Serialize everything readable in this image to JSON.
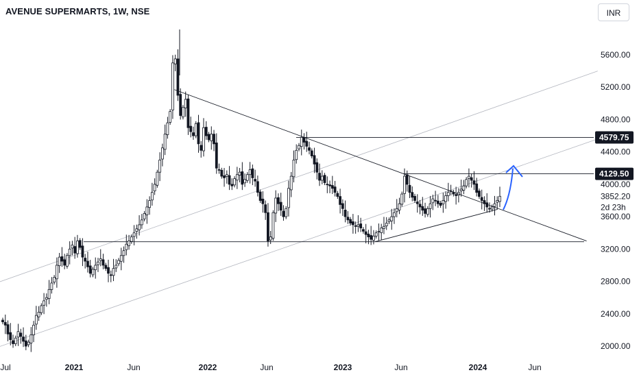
{
  "header": {
    "title": "AVENUE SUPERMARTS, 1W, NSE",
    "currency": "INR"
  },
  "chart_data": {
    "type": "candlestick",
    "title": "AVENUE SUPERMARTS, 1W, NSE",
    "xlabel": "",
    "ylabel": "",
    "ylim": [
      1880,
      6150
    ],
    "grid": false,
    "y_ticks": [
      "5600.00",
      "5200.00",
      "4800.00",
      "4400.00",
      "4000.00",
      "3600.00",
      "3200.00",
      "2800.00",
      "2400.00",
      "2000.00"
    ],
    "x_ticks": [
      "Jul",
      "2021",
      "Jun",
      "2022",
      "Jun",
      "2023",
      "Jun",
      "2024",
      "Jun"
    ],
    "price_tags": [
      {
        "value": 4579.75,
        "label": "4579.75"
      },
      {
        "value": 4129.5,
        "label": "4129.50"
      }
    ],
    "last_price": {
      "value": 3852.2,
      "label": "3852.20",
      "countdown": "2d 23h"
    },
    "horizontal_levels": [
      {
        "name": "resistance-1",
        "value": 4579.75
      },
      {
        "name": "resistance-2",
        "value": 4129.5
      },
      {
        "name": "support",
        "value": 3290
      }
    ],
    "candles_close": [
      2300,
      2260,
      2150,
      2080,
      2030,
      2100,
      2180,
      2120,
      2060,
      2000,
      2050,
      2140,
      2260,
      2380,
      2420,
      2500,
      2560,
      2600,
      2700,
      2780,
      2850,
      3000,
      3100,
      3050,
      3000,
      3120,
      3200,
      3250,
      3150,
      3300,
      3220,
      3100,
      3050,
      2980,
      2900,
      2950,
      3000,
      3040,
      3080,
      3000,
      2960,
      2900,
      2880,
      2960,
      3000,
      3060,
      3120,
      3180,
      3260,
      3300,
      3350,
      3400,
      3450,
      3500,
      3560,
      3640,
      3720,
      3800,
      3900,
      4000,
      4150,
      4300,
      4450,
      4620,
      4760,
      4900,
      5500,
      5550,
      5100,
      4850,
      4950,
      5050,
      4700,
      4650,
      4600,
      4750,
      4500,
      4420,
      4700,
      4600,
      4550,
      4620,
      4500,
      4200,
      4180,
      4100,
      4080,
      4120,
      4000,
      3980,
      4070,
      4120,
      4150,
      4000,
      4060,
      4120,
      4180,
      4080,
      4040,
      3900,
      3800,
      3760,
      3650,
      3300,
      3350,
      3650,
      3830,
      3760,
      3680,
      3600,
      3700,
      3950,
      4100,
      4300,
      4420,
      4480,
      4580,
      4520,
      4470,
      4420,
      4350,
      4250,
      4150,
      4050,
      4100,
      4020,
      4000,
      3980,
      3950,
      3900,
      3850,
      3750,
      3700,
      3600,
      3560,
      3520,
      3500,
      3480,
      3500,
      3460,
      3420,
      3380,
      3350,
      3320,
      3360,
      3400,
      3420,
      3460,
      3480,
      3520,
      3560,
      3600,
      3650,
      3700,
      3760,
      3880,
      4100,
      4000,
      3900,
      3840,
      3800,
      3760,
      3720,
      3680,
      3640,
      3700,
      3760,
      3820,
      3800,
      3760,
      3740,
      3800,
      3860,
      3900,
      3920,
      3880,
      3860,
      3900,
      3940,
      3980,
      4060,
      4100,
      4050,
      4000,
      3900,
      3850,
      3800,
      3760,
      3720,
      3700,
      3720,
      3760,
      3800,
      3852.2
    ],
    "annotations": [
      {
        "name": "descending-trendline",
        "from": {
          "x": "2021-10",
          "y": 5170
        },
        "to": {
          "x": "2024-11",
          "y": 3300
        }
      },
      {
        "name": "ascending-trendline",
        "from": {
          "x": "2023-04",
          "y": 3290
        },
        "to": {
          "x": "2024-03",
          "y": 3690
        }
      },
      {
        "name": "upper-channel",
        "from": {
          "x": "2020-06",
          "y": 2780
        },
        "to": {
          "x": "2024-12",
          "y": 5400
        }
      },
      {
        "name": "lower-channel",
        "from": {
          "x": "2020-06",
          "y": 1980
        },
        "to": {
          "x": "2024-12",
          "y": 4560
        }
      },
      {
        "name": "breakout-arrow",
        "from": {
          "x": "2024-04",
          "y": 3750
        },
        "to": {
          "x": "2024-05",
          "y": 4200
        }
      }
    ]
  },
  "colors": {
    "up": "#26a69a",
    "down": "#131722",
    "candle_body": "#131722",
    "line": "#131722",
    "channel": "#b2b5be",
    "arrow": "#2962ff",
    "tag_bg": "#131722"
  }
}
